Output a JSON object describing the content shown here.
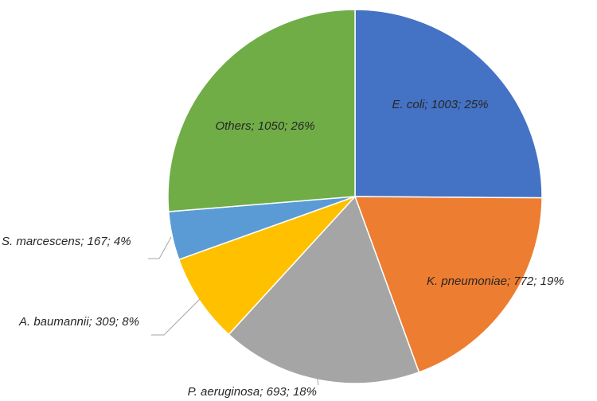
{
  "chart_data": {
    "type": "pie",
    "start_angle_deg": 0,
    "direction": "clockwise",
    "slices": [
      {
        "label": "E. coli",
        "value": 1003,
        "percent": "25%",
        "color": "#4472C4",
        "text": "E. coli; 1003; 25%"
      },
      {
        "label": "K. pneumoniae",
        "value": 772,
        "percent": "19%",
        "color": "#ED7D31",
        "text": "K. pneumoniae; 772; 19%"
      },
      {
        "label": "P. aeruginosa",
        "value": 693,
        "percent": "18%",
        "color": "#A5A5A5",
        "text": "P. aeruginosa; 693; 18%"
      },
      {
        "label": "A. baumannii",
        "value": 309,
        "percent": "8%",
        "color": "#FFC000",
        "text": "A. baumannii; 309; 8%"
      },
      {
        "label": "S. marcescens",
        "value": 167,
        "percent": "4%",
        "color": "#5B9BD5",
        "text": "S. marcescens; 167; 4%"
      },
      {
        "label": "Others",
        "value": 1050,
        "percent": "26%",
        "color": "#70AD47",
        "text": "Others; 1050; 26%"
      }
    ]
  }
}
